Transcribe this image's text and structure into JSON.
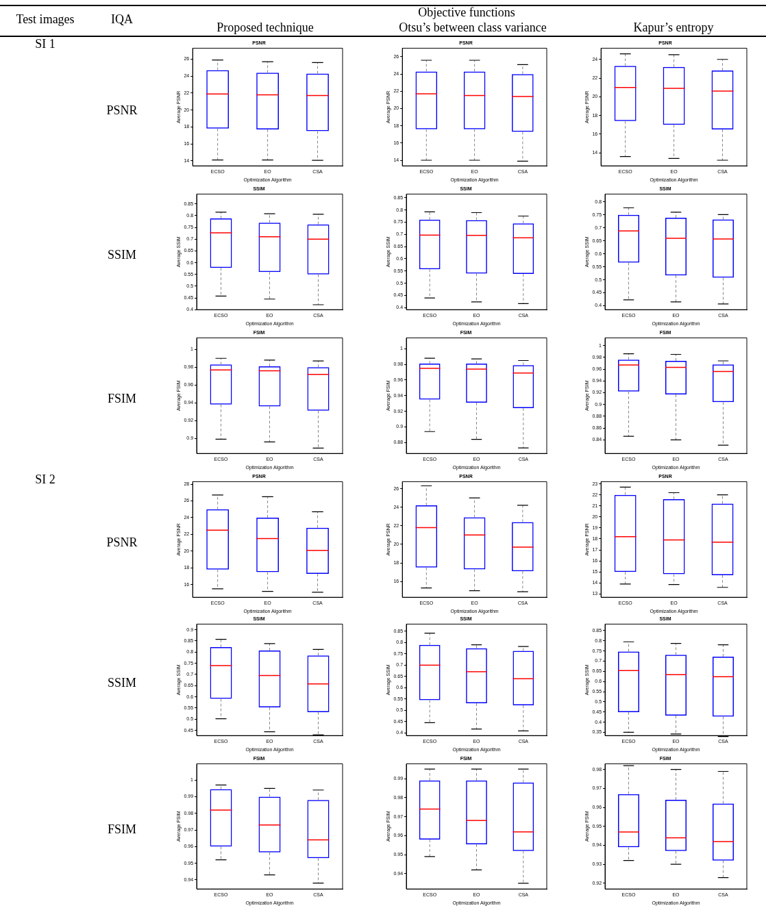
{
  "chart_data": [
    {
      "type": "other",
      "annotations": [
        "Test images",
        "IQA",
        "Objective functions",
        "Proposed technique",
        "Otsu’s between class variance",
        "Kapur’s entropy",
        "SI 1",
        "SI 2",
        "PSNR",
        "SSIM",
        "FSIM",
        "PSNR",
        "SSIM",
        "FSIM"
      ]
    },
    {
      "type": "box",
      "title": "PSNR",
      "xlabel": "Optimization Algorithm",
      "ylabel": "Average PSNR",
      "categories": [
        "ECSO",
        "EO",
        "CSA"
      ],
      "ylim": [
        13.4,
        27.3
      ],
      "yticks": [
        14,
        16,
        18,
        20,
        22,
        24,
        26
      ],
      "series": [
        {
          "color": "#0000ff",
          "boxes": [
            {
              "low": 14.1,
              "q1": 17.8,
              "median": 21.9,
              "q3": 24.7,
              "high": 25.9
            },
            {
              "low": 14.1,
              "q1": 17.7,
              "median": 21.8,
              "q3": 24.4,
              "high": 25.7
            },
            {
              "low": 14.05,
              "q1": 17.5,
              "median": 21.7,
              "q3": 24.3,
              "high": 25.6
            }
          ]
        }
      ]
    },
    {
      "type": "box",
      "title": "PSNR",
      "xlabel": "Optimization Algorithm",
      "ylabel": "Average PSNR",
      "categories": [
        "ECSO",
        "EO",
        "CSA"
      ],
      "ylim": [
        13.35,
        27
      ],
      "yticks": [
        14,
        16,
        18,
        20,
        22,
        24,
        26
      ],
      "series": [
        {
          "color": "#0000ff",
          "boxes": [
            {
              "low": 14,
              "q1": 17.6,
              "median": 21.7,
              "q3": 24.3,
              "high": 25.6
            },
            {
              "low": 14,
              "q1": 17.6,
              "median": 21.5,
              "q3": 24.3,
              "high": 25.6
            },
            {
              "low": 13.9,
              "q1": 17.3,
              "median": 21.4,
              "q3": 24,
              "high": 25.1
            }
          ]
        }
      ]
    },
    {
      "type": "box",
      "title": "PSNR",
      "xlabel": "Optimization Algorithm",
      "ylabel": "Average PSNR",
      "categories": [
        "ECSO",
        "EO",
        "CSA"
      ],
      "ylim": [
        12.6,
        25.2
      ],
      "yticks": [
        14,
        16,
        18,
        20,
        22,
        24
      ],
      "series": [
        {
          "color": "#0000ff",
          "boxes": [
            {
              "low": 13.6,
              "q1": 17.4,
              "median": 21,
              "q3": 23.3,
              "high": 24.6
            },
            {
              "low": 13.4,
              "q1": 17,
              "median": 20.9,
              "q3": 23.2,
              "high": 24.5
            },
            {
              "low": 13.2,
              "q1": 16.5,
              "median": 20.6,
              "q3": 22.8,
              "high": 24
            }
          ]
        }
      ]
    },
    {
      "type": "box",
      "title": "SSIM",
      "xlabel": "Optimization Algorithm",
      "ylabel": "Average SSIM",
      "categories": [
        "ECSO",
        "EO",
        "CSA"
      ],
      "ylim": [
        0.4,
        0.892
      ],
      "yticks": [
        0.4,
        0.45,
        0.5,
        0.55,
        0.6,
        0.65,
        0.7,
        0.75,
        0.8,
        0.85
      ],
      "series": [
        {
          "color": "#0000ff",
          "boxes": [
            {
              "low": 0.458,
              "q1": 0.578,
              "median": 0.727,
              "q3": 0.788,
              "high": 0.815
            },
            {
              "low": 0.445,
              "q1": 0.56,
              "median": 0.71,
              "q3": 0.77,
              "high": 0.808
            },
            {
              "low": 0.421,
              "q1": 0.55,
              "median": 0.7,
              "q3": 0.763,
              "high": 0.806
            }
          ]
        }
      ]
    },
    {
      "type": "box",
      "title": "SSIM",
      "xlabel": "Optimization Algorithm",
      "ylabel": "Average SSIM",
      "categories": [
        "ECSO",
        "EO",
        "CSA"
      ],
      "ylim": [
        0.392,
        0.865
      ],
      "yticks": [
        0.4,
        0.45,
        0.5,
        0.55,
        0.6,
        0.65,
        0.7,
        0.75,
        0.8,
        0.85
      ],
      "series": [
        {
          "color": "#0000ff",
          "boxes": [
            {
              "low": 0.44,
              "q1": 0.557,
              "median": 0.697,
              "q3": 0.76,
              "high": 0.792
            },
            {
              "low": 0.424,
              "q1": 0.54,
              "median": 0.696,
              "q3": 0.758,
              "high": 0.789
            },
            {
              "low": 0.417,
              "q1": 0.538,
              "median": 0.686,
              "q3": 0.745,
              "high": 0.775
            }
          ]
        }
      ]
    },
    {
      "type": "box",
      "title": "SSIM",
      "xlabel": "Optimization Algorithm",
      "ylabel": "Average SSIM",
      "categories": [
        "ECSO",
        "EO",
        "CSA"
      ],
      "ylim": [
        0.385,
        0.83
      ],
      "yticks": [
        0.4,
        0.45,
        0.5,
        0.55,
        0.6,
        0.65,
        0.7,
        0.75,
        0.8
      ],
      "series": [
        {
          "color": "#0000ff",
          "boxes": [
            {
              "low": 0.423,
              "q1": 0.566,
              "median": 0.688,
              "q3": 0.75,
              "high": 0.777
            },
            {
              "low": 0.415,
              "q1": 0.517,
              "median": 0.66,
              "q3": 0.739,
              "high": 0.76
            },
            {
              "low": 0.407,
              "q1": 0.508,
              "median": 0.657,
              "q3": 0.732,
              "high": 0.751
            }
          ]
        }
      ]
    },
    {
      "type": "box",
      "title": "FSIM",
      "xlabel": "Optimization Algorithm",
      "ylabel": "Average FSIM",
      "categories": [
        "ECSO",
        "EO",
        "CSA"
      ],
      "ylim": [
        0.883,
        1.013
      ],
      "yticks": [
        0.9,
        0.92,
        0.94,
        0.96,
        0.98,
        1
      ],
      "series": [
        {
          "color": "#0000ff",
          "boxes": [
            {
              "low": 0.899,
              "q1": 0.938,
              "median": 0.977,
              "q3": 0.983,
              "high": 0.99
            },
            {
              "low": 0.896,
              "q1": 0.936,
              "median": 0.976,
              "q3": 0.981,
              "high": 0.988
            },
            {
              "low": 0.889,
              "q1": 0.931,
              "median": 0.972,
              "q3": 0.98,
              "high": 0.987
            }
          ]
        }
      ]
    },
    {
      "type": "box",
      "title": "FSIM",
      "xlabel": "Optimization Algorithm",
      "ylabel": "Average FSIM",
      "categories": [
        "ECSO",
        "EO",
        "CSA"
      ],
      "ylim": [
        0.866,
        1.014
      ],
      "yticks": [
        0.88,
        0.9,
        0.92,
        0.94,
        0.96,
        0.98,
        1
      ],
      "series": [
        {
          "color": "#0000ff",
          "boxes": [
            {
              "low": 0.894,
              "q1": 0.935,
              "median": 0.975,
              "q3": 0.981,
              "high": 0.988
            },
            {
              "low": 0.884,
              "q1": 0.931,
              "median": 0.974,
              "q3": 0.981,
              "high": 0.987
            },
            {
              "low": 0.873,
              "q1": 0.924,
              "median": 0.969,
              "q3": 0.979,
              "high": 0.985
            }
          ]
        }
      ]
    },
    {
      "type": "box",
      "title": "FSIM",
      "xlabel": "Optimization Algorithm",
      "ylabel": "Average FSIM",
      "categories": [
        "ECSO",
        "EO",
        "CSA"
      ],
      "ylim": [
        0.817,
        1.013
      ],
      "yticks": [
        0.84,
        0.86,
        0.88,
        0.9,
        0.92,
        0.94,
        0.96,
        0.98,
        1
      ],
      "series": [
        {
          "color": "#0000ff",
          "boxes": [
            {
              "low": 0.846,
              "q1": 0.922,
              "median": 0.967,
              "q3": 0.976,
              "high": 0.986
            },
            {
              "low": 0.84,
              "q1": 0.917,
              "median": 0.963,
              "q3": 0.974,
              "high": 0.985
            },
            {
              "low": 0.831,
              "q1": 0.904,
              "median": 0.956,
              "q3": 0.968,
              "high": 0.974
            }
          ]
        }
      ]
    },
    {
      "type": "box",
      "title": "PSNR",
      "xlabel": "Optimization Algorithm",
      "ylabel": "Average PSNR",
      "categories": [
        "ECSO",
        "EO",
        "CSA"
      ],
      "ylim": [
        14.5,
        28.3
      ],
      "yticks": [
        16,
        18,
        20,
        22,
        24,
        26,
        28
      ],
      "series": [
        {
          "color": "#0000ff",
          "boxes": [
            {
              "low": 15.5,
              "q1": 17.8,
              "median": 22.5,
              "q3": 25,
              "high": 26.7
            },
            {
              "low": 15.2,
              "q1": 17.5,
              "median": 21.5,
              "q3": 24,
              "high": 26.5
            },
            {
              "low": 15.1,
              "q1": 17.3,
              "median": 20.1,
              "q3": 22.8,
              "high": 24.7
            }
          ]
        }
      ]
    },
    {
      "type": "box",
      "title": "PSNR",
      "xlabel": "Optimization Algorithm",
      "ylabel": "Average PSNR",
      "categories": [
        "ECSO",
        "EO",
        "CSA"
      ],
      "ylim": [
        14.3,
        26.75
      ],
      "yticks": [
        16,
        18,
        20,
        22,
        24,
        26
      ],
      "series": [
        {
          "color": "#0000ff",
          "boxes": [
            {
              "low": 15.3,
              "q1": 17.5,
              "median": 21.8,
              "q3": 24.2,
              "high": 26.3
            },
            {
              "low": 15,
              "q1": 17.3,
              "median": 21,
              "q3": 22.9,
              "high": 25
            },
            {
              "low": 14.9,
              "q1": 17.1,
              "median": 19.7,
              "q3": 22.4,
              "high": 24.2
            }
          ]
        }
      ]
    },
    {
      "type": "box",
      "title": "PSNR",
      "xlabel": "Optimization Algorithm",
      "ylabel": "Average PSNR",
      "categories": [
        "ECSO",
        "EO",
        "CSA"
      ],
      "ylim": [
        12.7,
        23.2
      ],
      "yticks": [
        13,
        14,
        15,
        16,
        17,
        18,
        19,
        20,
        21,
        22,
        23
      ],
      "series": [
        {
          "color": "#0000ff",
          "boxes": [
            {
              "low": 13.9,
              "q1": 15,
              "median": 18.2,
              "q3": 22,
              "high": 22.7
            },
            {
              "low": 13.85,
              "q1": 14.8,
              "median": 17.9,
              "q3": 21.6,
              "high": 22.2
            },
            {
              "low": 13.6,
              "q1": 14.7,
              "median": 17.7,
              "q3": 21.2,
              "high": 22
            }
          ]
        }
      ]
    },
    {
      "type": "box",
      "title": "SSIM",
      "xlabel": "Optimization Algorithm",
      "ylabel": "Average SSIM",
      "categories": [
        "ECSO",
        "EO",
        "CSA"
      ],
      "ylim": [
        0.427,
        0.925
      ],
      "yticks": [
        0.45,
        0.5,
        0.55,
        0.6,
        0.65,
        0.7,
        0.75,
        0.8,
        0.85,
        0.9
      ],
      "series": [
        {
          "color": "#0000ff",
          "boxes": [
            {
              "low": 0.502,
              "q1": 0.591,
              "median": 0.74,
              "q3": 0.822,
              "high": 0.857
            },
            {
              "low": 0.444,
              "q1": 0.553,
              "median": 0.695,
              "q3": 0.807,
              "high": 0.838
            },
            {
              "low": 0.43,
              "q1": 0.532,
              "median": 0.658,
              "q3": 0.785,
              "high": 0.812
            }
          ]
        }
      ]
    },
    {
      "type": "box",
      "title": "SSIM",
      "xlabel": "Optimization Algorithm",
      "ylabel": "Average SSIM",
      "categories": [
        "ECSO",
        "EO",
        "CSA"
      ],
      "ylim": [
        0.388,
        0.882
      ],
      "yticks": [
        0.4,
        0.45,
        0.5,
        0.55,
        0.6,
        0.65,
        0.7,
        0.75,
        0.8,
        0.85
      ],
      "series": [
        {
          "color": "#0000ff",
          "boxes": [
            {
              "low": 0.445,
              "q1": 0.545,
              "median": 0.7,
              "q3": 0.79,
              "high": 0.842
            },
            {
              "low": 0.417,
              "q1": 0.531,
              "median": 0.671,
              "q3": 0.775,
              "high": 0.79
            },
            {
              "low": 0.409,
              "q1": 0.522,
              "median": 0.64,
              "q3": 0.763,
              "high": 0.783
            }
          ]
        }
      ]
    },
    {
      "type": "box",
      "title": "SSIM",
      "xlabel": "Optimization Algorithm",
      "ylabel": "Average SSIM",
      "categories": [
        "ECSO",
        "EO",
        "CSA"
      ],
      "ylim": [
        0.334,
        0.882
      ],
      "yticks": [
        0.35,
        0.4,
        0.45,
        0.5,
        0.55,
        0.6,
        0.65,
        0.7,
        0.75,
        0.8,
        0.85
      ],
      "series": [
        {
          "color": "#0000ff",
          "boxes": [
            {
              "low": 0.35,
              "q1": 0.449,
              "median": 0.654,
              "q3": 0.747,
              "high": 0.795
            },
            {
              "low": 0.342,
              "q1": 0.432,
              "median": 0.633,
              "q3": 0.731,
              "high": 0.787
            },
            {
              "low": 0.329,
              "q1": 0.427,
              "median": 0.623,
              "q3": 0.722,
              "high": 0.78
            }
          ]
        }
      ]
    },
    {
      "type": "box",
      "title": "FSIM",
      "xlabel": "Optimization Algorithm",
      "ylabel": "Average FSIM",
      "categories": [
        "ECSO",
        "EO",
        "CSA"
      ],
      "ylim": [
        0.9345,
        1.0098
      ],
      "yticks": [
        0.94,
        0.95,
        0.96,
        0.97,
        0.98,
        0.99,
        1
      ],
      "series": [
        {
          "color": "#0000ff",
          "boxes": [
            {
              "low": 0.952,
              "q1": 0.96,
              "median": 0.982,
              "q3": 0.9945,
              "high": 0.997
            },
            {
              "low": 0.943,
              "q1": 0.9565,
              "median": 0.973,
              "q3": 0.99,
              "high": 0.995
            },
            {
              "low": 0.938,
              "q1": 0.953,
              "median": 0.964,
              "q3": 0.988,
              "high": 0.994
            }
          ]
        }
      ]
    },
    {
      "type": "box",
      "title": "FSIM",
      "xlabel": "Optimization Algorithm",
      "ylabel": "Average FSIM",
      "categories": [
        "ECSO",
        "EO",
        "CSA"
      ],
      "ylim": [
        0.932,
        0.9978
      ],
      "yticks": [
        0.94,
        0.95,
        0.96,
        0.97,
        0.98,
        0.99
      ],
      "series": [
        {
          "color": "#0000ff",
          "boxes": [
            {
              "low": 0.949,
              "q1": 0.958,
              "median": 0.974,
              "q3": 0.989,
              "high": 0.995
            },
            {
              "low": 0.942,
              "q1": 0.9555,
              "median": 0.968,
              "q3": 0.989,
              "high": 0.995
            },
            {
              "low": 0.935,
              "q1": 0.952,
              "median": 0.962,
              "q3": 0.988,
              "high": 0.995
            }
          ]
        }
      ]
    },
    {
      "type": "box",
      "title": "FSIM",
      "xlabel": "Optimization Algorithm",
      "ylabel": "Average FSIM",
      "categories": [
        "ECSO",
        "EO",
        "CSA"
      ],
      "ylim": [
        0.917,
        0.983
      ],
      "yticks": [
        0.92,
        0.93,
        0.94,
        0.95,
        0.96,
        0.97,
        0.98
      ],
      "series": [
        {
          "color": "#0000ff",
          "boxes": [
            {
              "low": 0.932,
              "q1": 0.939,
              "median": 0.947,
              "q3": 0.967,
              "high": 0.982
            },
            {
              "low": 0.93,
              "q1": 0.937,
              "median": 0.944,
              "q3": 0.964,
              "high": 0.98
            },
            {
              "low": 0.923,
              "q1": 0.932,
              "median": 0.942,
              "q3": 0.962,
              "high": 0.979
            }
          ]
        }
      ]
    }
  ]
}
